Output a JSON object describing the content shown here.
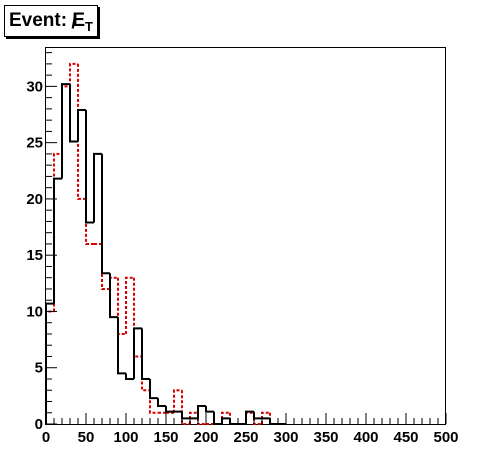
{
  "title": {
    "prefix": "Event: ",
    "symbol": "E",
    "slash": "/",
    "subscript": "T"
  },
  "colors": {
    "solid": "#000000",
    "dashed": "#dd0000",
    "frame": "#000000"
  },
  "chart_data": {
    "type": "histogram",
    "title": "Event: E̸T",
    "xlim": [
      0,
      500
    ],
    "ylim": [
      0,
      33.5
    ],
    "bin_width": 10,
    "x_ticks": [
      0,
      50,
      100,
      150,
      200,
      250,
      300,
      350,
      400,
      450,
      500
    ],
    "y_ticks": [
      0,
      5,
      10,
      15,
      20,
      25,
      30
    ],
    "bins_start": [
      0,
      10,
      20,
      30,
      40,
      50,
      60,
      70,
      80,
      90,
      100,
      110,
      120,
      130,
      140,
      150,
      160,
      170,
      180,
      190,
      200,
      210,
      220,
      230,
      240,
      250,
      260,
      270,
      280,
      290
    ],
    "series": [
      {
        "style": "solid-black",
        "values": [
          10.7,
          21.8,
          30.2,
          25.1,
          27.9,
          17.9,
          24.0,
          13.4,
          9.5,
          4.5,
          4.0,
          8.5,
          4.0,
          2.3,
          1.6,
          1.1,
          1.1,
          0.5,
          0.5,
          1.6,
          1.1,
          0,
          0.5,
          0,
          0,
          1.1,
          0.5,
          0.5,
          0,
          0
        ]
      },
      {
        "style": "dashed-red",
        "values": [
          10.0,
          24.0,
          30.0,
          32.0,
          20.0,
          16.0,
          16.0,
          12.0,
          13.0,
          8.0,
          13.0,
          6.0,
          3.0,
          1.0,
          1.0,
          1.0,
          3.0,
          0,
          1.0,
          0,
          0,
          0,
          1.0,
          0,
          0,
          1.0,
          0,
          1.0,
          0,
          0
        ]
      }
    ]
  }
}
